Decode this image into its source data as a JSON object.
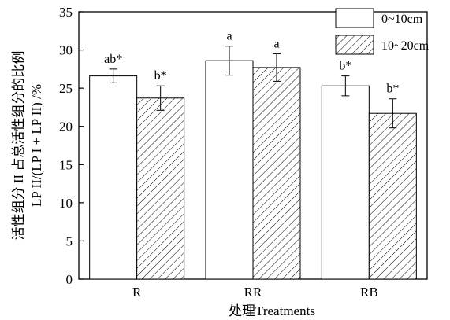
{
  "chart_data": {
    "type": "bar",
    "categories": [
      "R",
      "RR",
      "RB"
    ],
    "series": [
      {
        "name": "0~10cm",
        "values": [
          26.6,
          28.6,
          25.3
        ],
        "errors": [
          0.9,
          1.9,
          1.3
        ],
        "labels": [
          "ab*",
          "a",
          "b*"
        ],
        "pattern": "solid"
      },
      {
        "name": "10~20cm",
        "values": [
          23.7,
          27.7,
          21.7
        ],
        "errors": [
          1.6,
          1.8,
          1.9
        ],
        "labels": [
          "b*",
          "a",
          "b*"
        ],
        "pattern": "hatched"
      }
    ],
    "ylim": [
      0,
      35
    ],
    "yticks": [
      0,
      5,
      10,
      15,
      20,
      25,
      30,
      35
    ],
    "xlabel": "处理Treatments",
    "ylabel_line1": "活性组分 II 占总活性组分的比例",
    "ylabel_line2": "LP II/(LP I + LP II) /%",
    "legend_position": "top-right",
    "grid": false
  }
}
